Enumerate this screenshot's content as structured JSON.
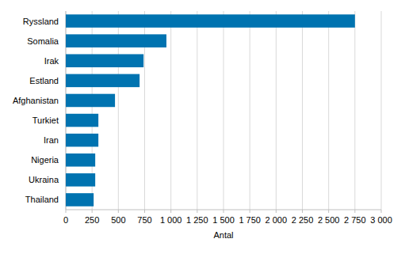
{
  "chart_data": {
    "type": "bar",
    "orientation": "horizontal",
    "x_label": "Antal",
    "categories": [
      "Ryssland",
      "Somalia",
      "Irak",
      "Estland",
      "Afghanistan",
      "Turkiet",
      "Iran",
      "Nigeria",
      "Ukraina",
      "Thailand"
    ],
    "values": [
      2750,
      957,
      740,
      702,
      468,
      310,
      310,
      280,
      280,
      265
    ],
    "color": "#0073b0",
    "xlim": [
      0,
      3000
    ],
    "xticks": [
      0,
      250,
      500,
      750,
      {
        "value": 1000,
        "label": "1 000"
      },
      {
        "value": 1250,
        "label": "1 250"
      },
      {
        "value": 1500,
        "label": "1 500"
      },
      {
        "value": 1750,
        "label": "1 750"
      },
      {
        "value": 2000,
        "label": "2 000"
      },
      {
        "value": 2250,
        "label": "2 250"
      },
      {
        "value": 2500,
        "label": "2 500"
      },
      {
        "value": 2750,
        "label": "2 750"
      },
      {
        "value": 3000,
        "label": "3 000"
      }
    ],
    "grid": true
  }
}
